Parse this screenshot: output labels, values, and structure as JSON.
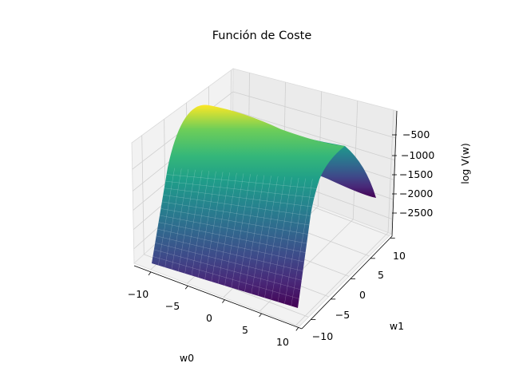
{
  "chart_data": {
    "type": "surface",
    "title": "Función de Coste",
    "xlabel": "w0",
    "ylabel": "w1",
    "zlabel": "log V(w)",
    "x_ticks": [
      "−10",
      "−5",
      "0",
      "5",
      "10"
    ],
    "y_ticks": [
      "−10",
      "−5",
      "0",
      "5",
      "10"
    ],
    "z_ticks": [
      "−2500",
      "−2000",
      "−1500",
      "−1000",
      "−500"
    ],
    "xlim": [
      -10,
      10
    ],
    "ylim": [
      -10,
      10
    ],
    "zlim": [
      -2800,
      -200
    ],
    "colormap": "viridis",
    "grid": true,
    "surface_samples": [
      {
        "w1": -10,
        "log_v": -245
      },
      {
        "w1": -5,
        "log_v": -2000
      },
      {
        "w1": 0,
        "log_v": -2790
      },
      {
        "w1": 5,
        "log_v": -2130
      },
      {
        "w1": 10,
        "log_v": -360
      }
    ]
  }
}
